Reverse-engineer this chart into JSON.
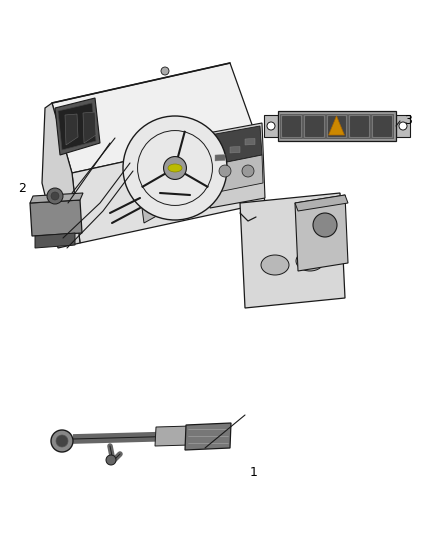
{
  "bg_color": "#ffffff",
  "lc": "#1a1a1a",
  "fig_width": 4.38,
  "fig_height": 5.33,
  "dpi": 100,
  "label_fontsize": 9,
  "labels": {
    "1": [
      0.58,
      0.115
    ],
    "2": [
      0.075,
      0.415
    ],
    "3": [
      0.76,
      0.565
    ]
  }
}
